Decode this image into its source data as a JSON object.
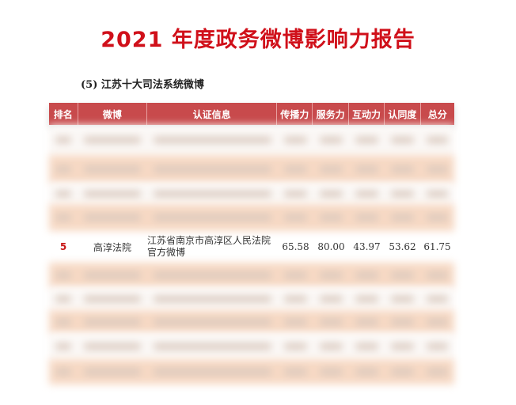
{
  "title": "2021 年度政务微博影响力报告",
  "section_title": "(5) 江苏十大司法系统微博",
  "table": {
    "headers": [
      "排名",
      "微博",
      "认证信息",
      "传播力",
      "服务力",
      "互动力",
      "认同度",
      "总分"
    ],
    "visible_row": {
      "rank": "5",
      "weibo": "高淳法院",
      "cert": "江苏省南京市高淳区人民法院官方微博",
      "spread": "65.58",
      "service": "80.00",
      "interaction": "43.97",
      "recognition": "53.62",
      "total": "61.75"
    }
  },
  "colors": {
    "title": "#d0101a",
    "header_bg": "#c84a4c",
    "band": "#f7d9c4"
  }
}
